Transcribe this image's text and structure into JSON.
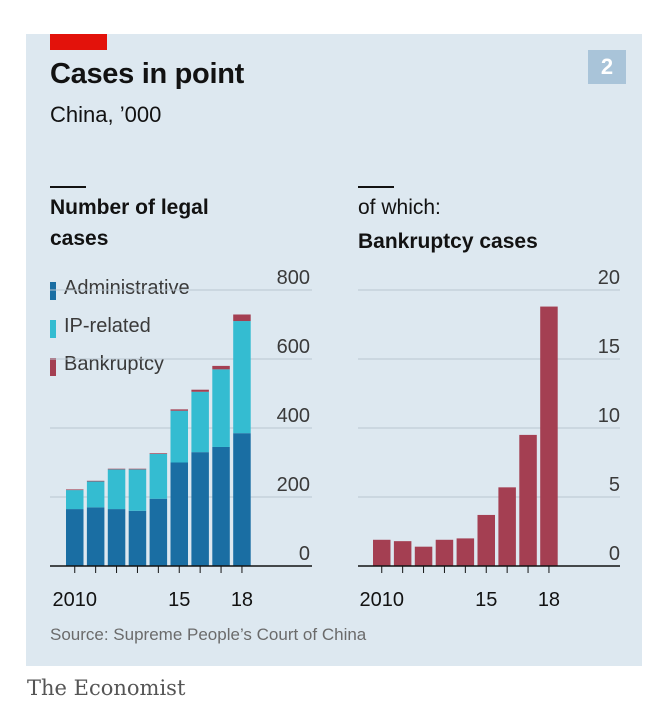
{
  "header": {
    "title": "Cases in point",
    "subtitle": "China, ’000",
    "chart_number": "2"
  },
  "source": "Source: Supreme People’s Court of China",
  "brand": "The Economist",
  "colors": {
    "administrative": "#1a6ea3",
    "ip_related": "#34bcd1",
    "bankruptcy": "#a43f52",
    "background": "#dde8f0",
    "accent_red": "#e3120b"
  },
  "chart_data": [
    {
      "type": "bar",
      "stacked": true,
      "title": "Number of legal cases",
      "title_lines": [
        "Number of legal",
        "cases"
      ],
      "categories": [
        "2010",
        "2011",
        "2012",
        "2013",
        "2014",
        "2015",
        "2016",
        "2017",
        "2018"
      ],
      "x_tick_labels": [
        "2010",
        "",
        "",
        "",
        "",
        "15",
        "",
        "",
        "18"
      ],
      "series": [
        {
          "name": "Administrative",
          "key": "administrative",
          "values": [
            165,
            170,
            165,
            160,
            195,
            300,
            330,
            345,
            385
          ]
        },
        {
          "name": "IP-related",
          "key": "ip_related",
          "values": [
            55,
            75,
            115,
            120,
            130,
            150,
            175,
            225,
            325
          ]
        },
        {
          "name": "Bankruptcy",
          "key": "bankruptcy",
          "values": [
            2,
            2,
            2,
            2,
            2,
            4,
            6,
            10,
            19
          ]
        }
      ],
      "ylim": [
        0,
        800
      ],
      "yticks": [
        0,
        200,
        400,
        600,
        800
      ],
      "y_tick_labels": [
        "0",
        "200",
        "400",
        "600",
        "800"
      ],
      "grid": true
    },
    {
      "type": "bar",
      "title_prefix": "of which:",
      "title": "Bankruptcy cases",
      "categories": [
        "2010",
        "2011",
        "2012",
        "2013",
        "2014",
        "2015",
        "2016",
        "2017",
        "2018"
      ],
      "x_tick_labels": [
        "2010",
        "",
        "",
        "",
        "",
        "15",
        "",
        "",
        "18"
      ],
      "values": [
        1.9,
        1.8,
        1.4,
        1.9,
        2.0,
        3.7,
        5.7,
        9.5,
        18.8
      ],
      "ylim": [
        0,
        20
      ],
      "yticks": [
        0,
        5,
        10,
        15,
        20
      ],
      "y_tick_labels": [
        "0",
        "5",
        "10",
        "15",
        "20"
      ],
      "grid": true
    }
  ]
}
